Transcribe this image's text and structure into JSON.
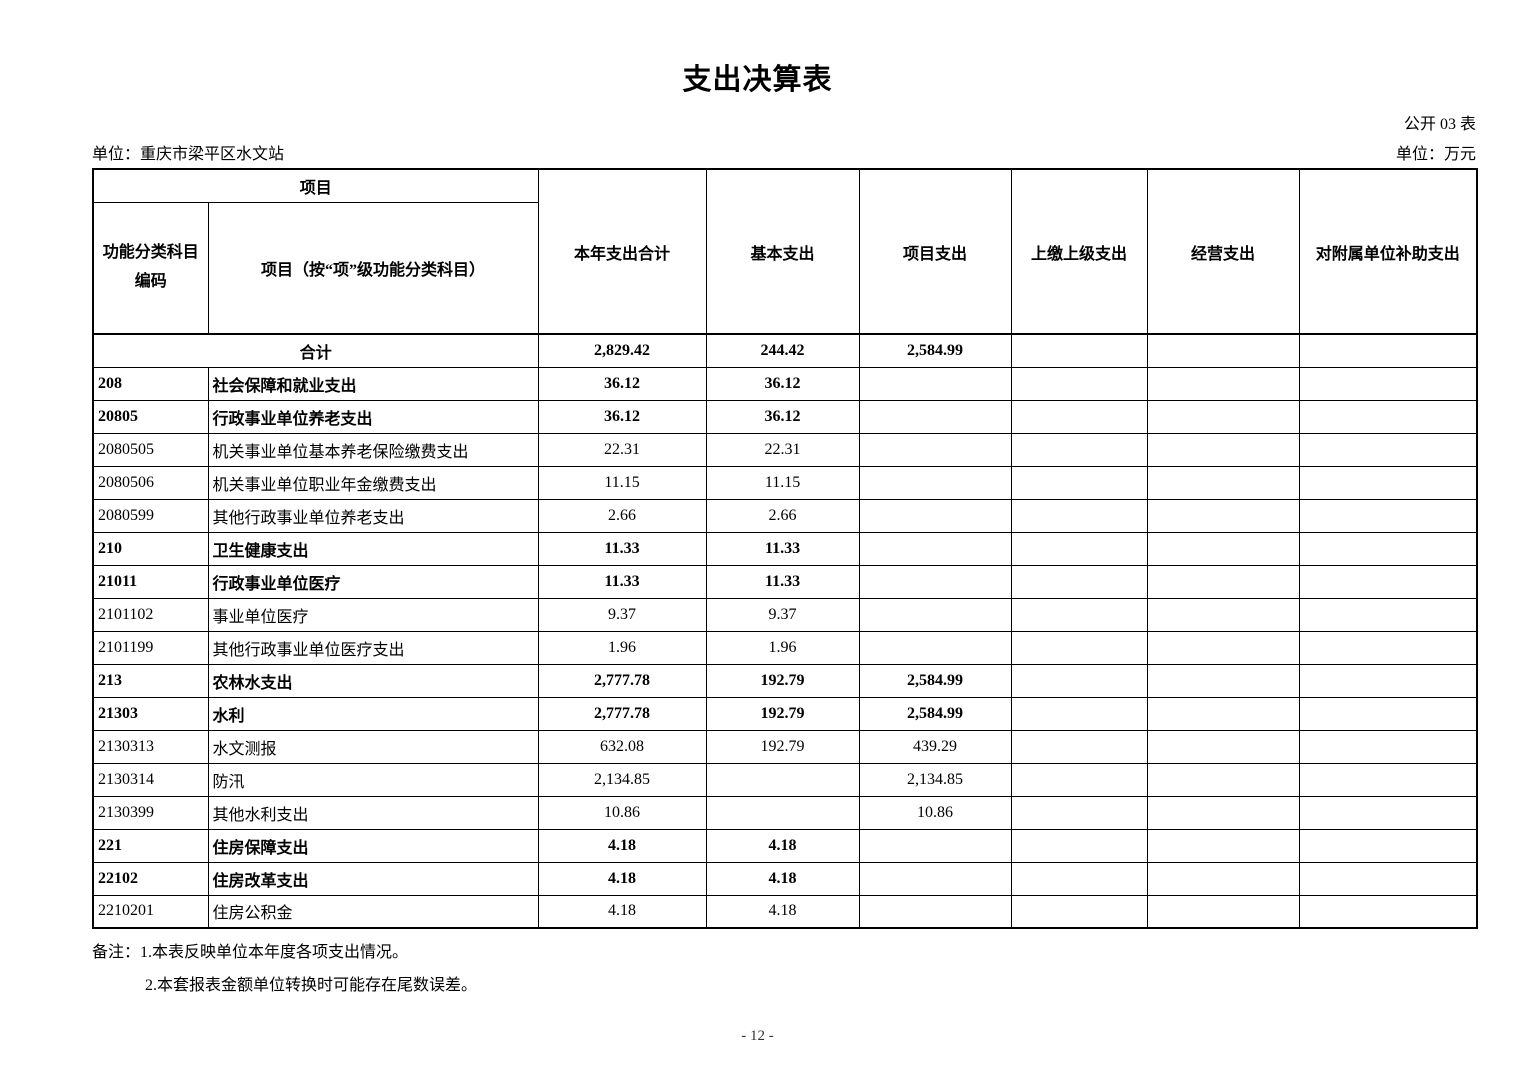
{
  "page": {
    "title": "支出决算表",
    "form_label": "公开 03 表",
    "org_unit": "单位：重庆市梁平区水文站",
    "money_unit": "单位：万元",
    "page_number": "- 12 -"
  },
  "table": {
    "header": {
      "project_group": "项目",
      "code_label": "功能分类科目编码",
      "item_label": "项目（按“项”级功能分类科目）",
      "value_columns": [
        "本年支出合计",
        "基本支出",
        "项目支出",
        "上缴上级支出",
        "经营支出",
        "对附属单位补助支出"
      ]
    },
    "rows": [
      {
        "code": "",
        "name": "合计",
        "merged": true,
        "bold": true,
        "values": [
          "2,829.42",
          "244.42",
          "2,584.99",
          "",
          "",
          ""
        ]
      },
      {
        "code": "208",
        "name": "社会保障和就业支出",
        "merged": false,
        "bold": true,
        "values": [
          "36.12",
          "36.12",
          "",
          "",
          "",
          ""
        ]
      },
      {
        "code": "20805",
        "name": "行政事业单位养老支出",
        "merged": false,
        "bold": true,
        "values": [
          "36.12",
          "36.12",
          "",
          "",
          "",
          ""
        ]
      },
      {
        "code": "2080505",
        "name": "机关事业单位基本养老保险缴费支出",
        "merged": false,
        "bold": false,
        "values": [
          "22.31",
          "22.31",
          "",
          "",
          "",
          ""
        ]
      },
      {
        "code": "2080506",
        "name": "机关事业单位职业年金缴费支出",
        "merged": false,
        "bold": false,
        "values": [
          "11.15",
          "11.15",
          "",
          "",
          "",
          ""
        ]
      },
      {
        "code": "2080599",
        "name": "其他行政事业单位养老支出",
        "merged": false,
        "bold": false,
        "values": [
          "2.66",
          "2.66",
          "",
          "",
          "",
          ""
        ]
      },
      {
        "code": "210",
        "name": "卫生健康支出",
        "merged": false,
        "bold": true,
        "values": [
          "11.33",
          "11.33",
          "",
          "",
          "",
          ""
        ]
      },
      {
        "code": "21011",
        "name": "行政事业单位医疗",
        "merged": false,
        "bold": true,
        "values": [
          "11.33",
          "11.33",
          "",
          "",
          "",
          ""
        ]
      },
      {
        "code": "2101102",
        "name": "事业单位医疗",
        "merged": false,
        "bold": false,
        "values": [
          "9.37",
          "9.37",
          "",
          "",
          "",
          ""
        ]
      },
      {
        "code": "2101199",
        "name": "其他行政事业单位医疗支出",
        "merged": false,
        "bold": false,
        "values": [
          "1.96",
          "1.96",
          "",
          "",
          "",
          ""
        ]
      },
      {
        "code": "213",
        "name": "农林水支出",
        "merged": false,
        "bold": true,
        "values": [
          "2,777.78",
          "192.79",
          "2,584.99",
          "",
          "",
          ""
        ]
      },
      {
        "code": "21303",
        "name": "水利",
        "merged": false,
        "bold": true,
        "values": [
          "2,777.78",
          "192.79",
          "2,584.99",
          "",
          "",
          ""
        ]
      },
      {
        "code": "2130313",
        "name": "水文测报",
        "merged": false,
        "bold": false,
        "values": [
          "632.08",
          "192.79",
          "439.29",
          "",
          "",
          ""
        ]
      },
      {
        "code": "2130314",
        "name": "防汛",
        "merged": false,
        "bold": false,
        "values": [
          "2,134.85",
          "",
          "2,134.85",
          "",
          "",
          ""
        ]
      },
      {
        "code": "2130399",
        "name": "其他水利支出",
        "merged": false,
        "bold": false,
        "values": [
          "10.86",
          "",
          "10.86",
          "",
          "",
          ""
        ]
      },
      {
        "code": "221",
        "name": "住房保障支出",
        "merged": false,
        "bold": true,
        "values": [
          "4.18",
          "4.18",
          "",
          "",
          "",
          ""
        ]
      },
      {
        "code": "22102",
        "name": "住房改革支出",
        "merged": false,
        "bold": true,
        "values": [
          "4.18",
          "4.18",
          "",
          "",
          "",
          ""
        ]
      },
      {
        "code": "2210201",
        "name": "住房公积金",
        "merged": false,
        "bold": false,
        "values": [
          "4.18",
          "4.18",
          "",
          "",
          "",
          ""
        ]
      }
    ]
  },
  "notes": {
    "line1": "备注：1.本表反映单位本年度各项支出情况。",
    "line2": "2.本套报表金额单位转换时可能存在尾数误差。"
  }
}
